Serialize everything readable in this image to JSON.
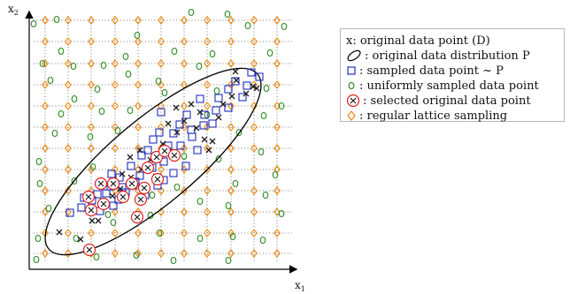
{
  "figure": {
    "x_axis_label": "x",
    "x_axis_subscript": "1",
    "y_axis_label": "x",
    "y_axis_subscript": "2"
  },
  "legend": {
    "items": [
      {
        "marker": "x-cross",
        "label": "x: original data point (D)"
      },
      {
        "marker": "ellipse-outline",
        "label": ": original data distribution P"
      },
      {
        "marker": "blue-square",
        "label": ": sampled data point ~ P"
      },
      {
        "marker": "green-circle",
        "label": ": uniformly sampled data point"
      },
      {
        "marker": "circled-x",
        "label": ": selected original data point"
      },
      {
        "marker": "orange-diamond",
        "label": ": regular lattice sampling"
      }
    ]
  },
  "colors": {
    "original": "#1a1a1a",
    "sampled": "#1f2fbf",
    "uniform": "#2e8b22",
    "selected": "#e02020",
    "lattice": "#f08a10",
    "grid": "#555555"
  }
}
